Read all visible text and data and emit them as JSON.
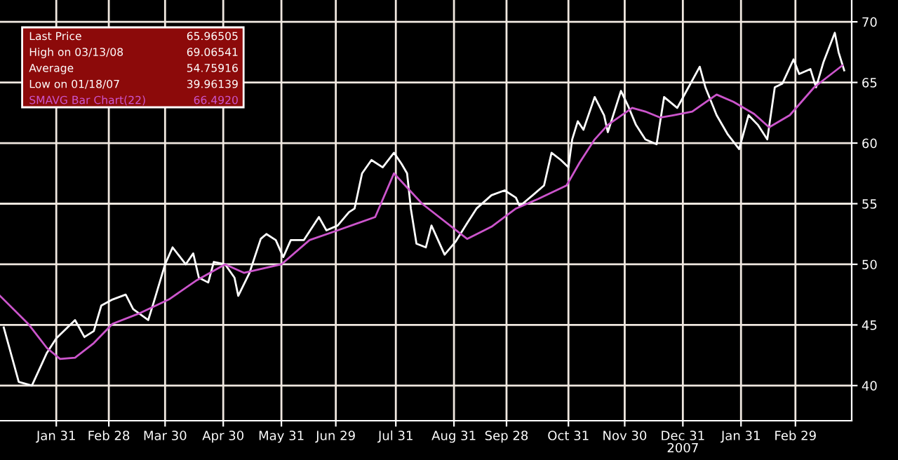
{
  "chart_data": {
    "type": "line",
    "xlim": [
      "2007-01-01",
      "2008-03-30"
    ],
    "ylim": [
      37.1,
      71.8
    ],
    "yticks": [
      40,
      45,
      50,
      55,
      60,
      65,
      70
    ],
    "xticks": [
      {
        "value": "2007-01-31",
        "label": "Jan 31"
      },
      {
        "value": "2007-02-28",
        "label": "Feb 28"
      },
      {
        "value": "2007-03-30",
        "label": "Mar 30"
      },
      {
        "value": "2007-04-30",
        "label": "Apr 30"
      },
      {
        "value": "2007-05-31",
        "label": "May 31"
      },
      {
        "value": "2007-06-29",
        "label": "Jun 29"
      },
      {
        "value": "2007-07-31",
        "label": "Jul 31"
      },
      {
        "value": "2007-08-31",
        "label": "Aug 31"
      },
      {
        "value": "2007-09-28",
        "label": "Sep 28"
      },
      {
        "value": "2007-10-31",
        "label": "Oct 31"
      },
      {
        "value": "2007-11-30",
        "label": "Nov 30"
      },
      {
        "value": "2007-12-31",
        "label": "Dec 31\n2007"
      },
      {
        "value": "2008-01-31",
        "label": "Jan 31"
      },
      {
        "value": "2008-02-29",
        "label": "Feb 29"
      }
    ],
    "grid": true,
    "legend": "top left",
    "annotations": [
      "65.96505",
      "High on 03/13/08",
      "69.06541",
      "Average",
      "54.75916",
      "Low on 01/18/07",
      "39.96139",
      "66.4920"
    ],
    "series": [
      {
        "name": "Last Price",
        "color": "#ffffff",
        "x": [
          "2007-01-03",
          "2007-01-11",
          "2007-01-18",
          "2007-01-26",
          "2007-01-31",
          "2007-02-10",
          "2007-02-15",
          "2007-02-20",
          "2007-02-24",
          "2007-03-02",
          "2007-03-09",
          "2007-03-13",
          "2007-03-21",
          "2007-03-24",
          "2007-03-30",
          "2007-04-03",
          "2007-04-10",
          "2007-04-14",
          "2007-04-17",
          "2007-04-22",
          "2007-04-25",
          "2007-05-01",
          "2007-05-06",
          "2007-05-08",
          "2007-05-14",
          "2007-05-20",
          "2007-05-23",
          "2007-05-28",
          "2007-06-01",
          "2007-06-05",
          "2007-06-12",
          "2007-06-20",
          "2007-06-24",
          "2007-06-30",
          "2007-07-06",
          "2007-07-09",
          "2007-07-13",
          "2007-07-18",
          "2007-07-24",
          "2007-07-30",
          "2007-08-03",
          "2007-08-06",
          "2007-08-08",
          "2007-08-11",
          "2007-08-16",
          "2007-08-19",
          "2007-08-26",
          "2007-09-01",
          "2007-09-07",
          "2007-09-12",
          "2007-09-20",
          "2007-09-27",
          "2007-10-03",
          "2007-10-05",
          "2007-10-12",
          "2007-10-18",
          "2007-10-22",
          "2007-10-27",
          "2007-10-31",
          "2007-11-02",
          "2007-11-05",
          "2007-11-08",
          "2007-11-14",
          "2007-11-19",
          "2007-11-21",
          "2007-11-28",
          "2007-12-02",
          "2007-12-06",
          "2007-12-11",
          "2007-12-17",
          "2007-12-21",
          "2007-12-28",
          "2008-01-03",
          "2008-01-09",
          "2008-01-12",
          "2008-01-18",
          "2008-01-24",
          "2008-01-30",
          "2008-02-04",
          "2008-02-09",
          "2008-02-14",
          "2008-02-18",
          "2008-02-22",
          "2008-02-28",
          "2008-03-02",
          "2008-03-08",
          "2008-03-11",
          "2008-03-15",
          "2008-03-21",
          "2008-03-23",
          "2008-03-26"
        ],
        "values": [
          44.8,
          40.3,
          40.0,
          42.7,
          43.9,
          45.4,
          44.0,
          44.5,
          46.6,
          47.1,
          47.5,
          46.3,
          45.4,
          46.9,
          50.0,
          51.4,
          50.0,
          50.9,
          48.9,
          48.5,
          50.2,
          50.0,
          48.9,
          47.4,
          49.3,
          52.1,
          52.5,
          52.0,
          50.6,
          52.0,
          52.0,
          53.9,
          52.8,
          53.2,
          54.3,
          54.6,
          57.5,
          58.6,
          58.0,
          59.2,
          58.3,
          57.5,
          54.6,
          51.7,
          51.4,
          53.2,
          50.8,
          51.9,
          53.4,
          54.6,
          55.7,
          56.1,
          55.5,
          54.8,
          55.7,
          56.5,
          59.2,
          58.6,
          58.0,
          60.3,
          61.8,
          61.1,
          63.8,
          62.3,
          60.9,
          64.3,
          63.0,
          61.5,
          60.3,
          59.9,
          63.8,
          62.9,
          64.6,
          66.3,
          64.6,
          62.3,
          60.7,
          59.5,
          62.3,
          61.5,
          60.3,
          64.6,
          64.9,
          66.9,
          65.7,
          66.1,
          64.6,
          66.7,
          69.1,
          67.5,
          66.0
        ]
      },
      {
        "name": "SMAVG Bar Chart(22)",
        "color": "#cc55cc",
        "x": [
          "2007-01-01",
          "2007-01-16",
          "2007-01-26",
          "2007-02-02",
          "2007-02-10",
          "2007-02-20",
          "2007-03-02",
          "2007-03-17",
          "2007-04-01",
          "2007-04-16",
          "2007-05-01",
          "2007-05-11",
          "2007-05-31",
          "2007-06-15",
          "2007-06-30",
          "2007-07-20",
          "2007-07-30",
          "2007-08-14",
          "2007-09-07",
          "2007-09-20",
          "2007-10-03",
          "2007-10-15",
          "2007-10-30",
          "2007-11-06",
          "2007-11-14",
          "2007-11-21",
          "2007-12-04",
          "2007-12-11",
          "2007-12-19",
          "2007-12-26",
          "2008-01-05",
          "2008-01-18",
          "2008-01-27",
          "2008-02-07",
          "2008-02-15",
          "2008-02-26",
          "2008-03-10",
          "2008-03-25"
        ],
        "values": [
          47.4,
          45.1,
          43.1,
          42.2,
          42.3,
          43.5,
          45.1,
          46.0,
          47.1,
          48.7,
          50.0,
          49.3,
          50.0,
          52.0,
          52.8,
          53.9,
          57.5,
          55.0,
          52.1,
          53.1,
          54.6,
          55.4,
          56.5,
          58.4,
          60.3,
          61.5,
          62.9,
          62.6,
          62.1,
          62.3,
          62.6,
          64.0,
          63.4,
          62.4,
          61.3,
          62.3,
          64.6,
          66.4
        ]
      }
    ]
  }
}
